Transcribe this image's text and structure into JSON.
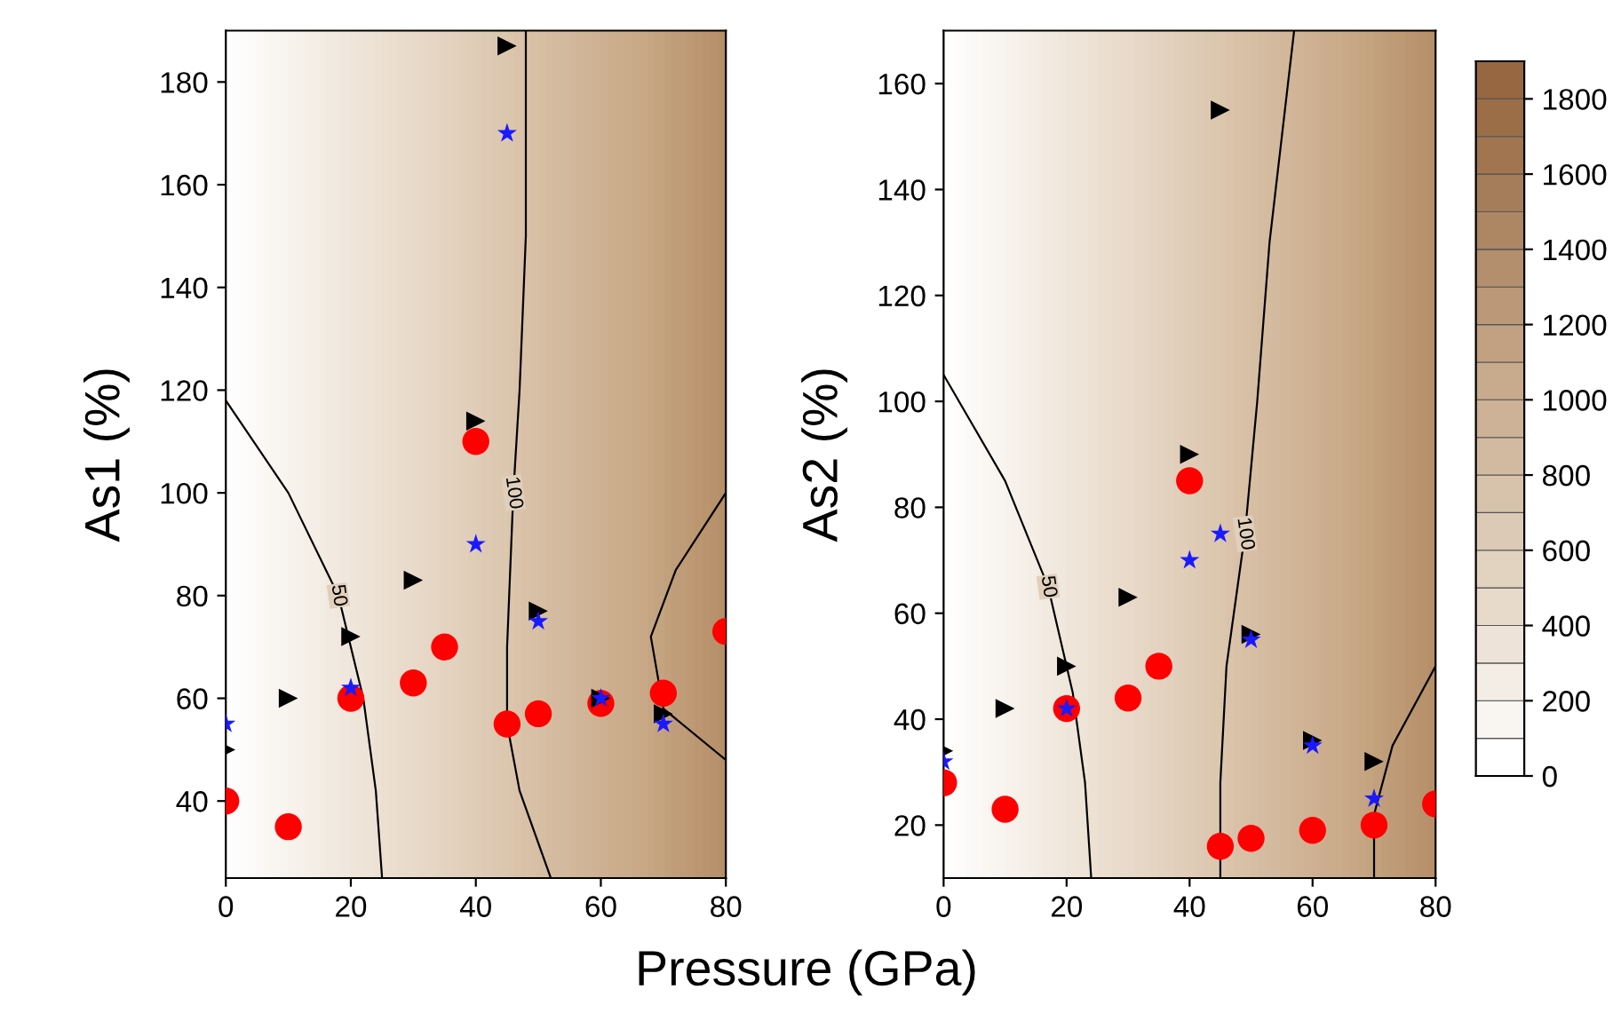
{
  "chart_data": [
    {
      "type": "scatter",
      "xlabel": "Pressure (GPa)",
      "ylabel": "As1 (%)",
      "xlim": [
        0,
        80
      ],
      "ylim": [
        25,
        190
      ],
      "xticks": [
        0,
        20,
        40,
        60,
        80
      ],
      "yticks": [
        40,
        60,
        80,
        100,
        120,
        140,
        160,
        180
      ],
      "series": [
        {
          "type": "line",
          "name": "50",
          "color": "#000000",
          "x": [
            0,
            10,
            18,
            22,
            24,
            25
          ],
          "values": [
            118,
            100,
            80,
            60,
            42,
            25
          ]
        },
        {
          "type": "line",
          "name": "100",
          "color": "#000000",
          "x": [
            48,
            48,
            47,
            46,
            45,
            45,
            47,
            52
          ],
          "values": [
            190,
            150,
            120,
            100,
            70,
            55,
            42,
            25
          ]
        },
        {
          "type": "line",
          "color": "#000000",
          "x": [
            80,
            72,
            68,
            70,
            80
          ],
          "values": [
            100,
            85,
            72,
            58,
            48
          ]
        },
        {
          "type": "scatter",
          "marker": "circle",
          "color": "#ff0000",
          "x": [
            0,
            10,
            20,
            30,
            35,
            40,
            45,
            50,
            60,
            70,
            80
          ],
          "values": [
            40,
            35,
            60,
            63,
            70,
            110,
            55,
            57,
            59,
            61,
            73
          ]
        },
        {
          "type": "scatter",
          "marker": "triangle",
          "color": "#000000",
          "x": [
            0,
            10,
            20,
            30,
            40,
            45,
            50,
            60,
            70
          ],
          "values": [
            50,
            60,
            72,
            83,
            114,
            187,
            77,
            60,
            57
          ]
        },
        {
          "type": "scatter",
          "marker": "star",
          "color": "#1a1aff",
          "x": [
            0,
            20,
            40,
            45,
            50,
            60,
            70
          ],
          "values": [
            55,
            62,
            90,
            170,
            75,
            60,
            55
          ]
        }
      ]
    },
    {
      "type": "scatter",
      "ylabel": "As2 (%)",
      "xlim": [
        0,
        80
      ],
      "ylim": [
        10,
        170
      ],
      "xticks": [
        0,
        20,
        40,
        60,
        80
      ],
      "yticks": [
        20,
        40,
        60,
        80,
        100,
        120,
        140,
        160
      ],
      "series": [
        {
          "type": "line",
          "name": "50",
          "color": "#000000",
          "x": [
            0,
            10,
            17,
            21,
            23,
            24
          ],
          "values": [
            105,
            85,
            65,
            45,
            28,
            10
          ]
        },
        {
          "type": "line",
          "name": "100",
          "color": "#000000",
          "x": [
            57,
            53,
            51,
            49,
            46,
            45,
            45
          ],
          "values": [
            170,
            130,
            100,
            75,
            50,
            28,
            10
          ]
        },
        {
          "type": "line",
          "color": "#000000",
          "x": [
            80,
            73,
            70,
            70
          ],
          "values": [
            50,
            35,
            22,
            10
          ]
        },
        {
          "type": "scatter",
          "marker": "circle",
          "color": "#ff0000",
          "x": [
            0,
            10,
            20,
            30,
            35,
            40,
            45,
            50,
            60,
            70,
            80
          ],
          "values": [
            28,
            23,
            42,
            44,
            50,
            85,
            16,
            17.5,
            19,
            20,
            24
          ]
        },
        {
          "type": "scatter",
          "marker": "triangle",
          "color": "#000000",
          "x": [
            0,
            10,
            20,
            30,
            40,
            45,
            50,
            60,
            70
          ],
          "values": [
            34,
            42,
            50,
            63,
            90,
            155,
            56,
            36,
            32
          ]
        },
        {
          "type": "scatter",
          "marker": "star",
          "color": "#1a1aff",
          "x": [
            0,
            20,
            40,
            45,
            50,
            60,
            70
          ],
          "values": [
            32,
            42,
            70,
            75,
            55,
            35,
            25
          ]
        }
      ]
    },
    {
      "type": "bar",
      "stacked": true,
      "categories": [
        null
      ],
      "ylim": [
        0,
        1900
      ],
      "yticks": [
        0,
        200,
        400,
        600,
        800,
        1000,
        1200,
        1400,
        1600,
        1800
      ],
      "series": [
        {
          "color": "#ffffff",
          "values": [
            100
          ]
        },
        {
          "color": "#f9f6f2",
          "values": [
            100
          ]
        },
        {
          "color": "#f3ede5",
          "values": [
            100
          ]
        },
        {
          "color": "#ede3d8",
          "values": [
            100
          ]
        },
        {
          "color": "#e7dacb",
          "values": [
            100
          ]
        },
        {
          "color": "#e2d2c0",
          "values": [
            100
          ]
        },
        {
          "color": "#dccab6",
          "values": [
            100
          ]
        },
        {
          "color": "#d7c2ac",
          "values": [
            100
          ]
        },
        {
          "color": "#d2baa1",
          "values": [
            100
          ]
        },
        {
          "color": "#cdb297",
          "values": [
            100
          ]
        },
        {
          "color": "#c8aa8c",
          "values": [
            100
          ]
        },
        {
          "color": "#c2a182",
          "values": [
            100
          ]
        },
        {
          "color": "#bb9878",
          "values": [
            100
          ]
        },
        {
          "color": "#b48f6e",
          "values": [
            100
          ]
        },
        {
          "color": "#ad8664",
          "values": [
            100
          ]
        },
        {
          "color": "#a67d5a",
          "values": [
            100
          ]
        },
        {
          "color": "#a07550",
          "values": [
            100
          ]
        },
        {
          "color": "#9b6e48",
          "values": [
            100
          ]
        },
        {
          "color": "#966741",
          "values": [
            100
          ]
        }
      ]
    }
  ]
}
